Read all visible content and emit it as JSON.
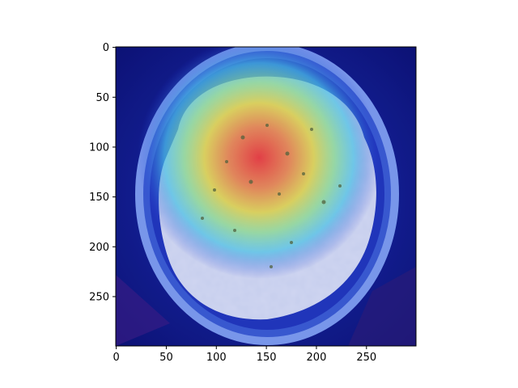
{
  "chart_data": {
    "type": "heatmap",
    "title": "",
    "xlabel": "",
    "ylabel": "",
    "xlim": [
      0,
      299
    ],
    "ylim": [
      299,
      0
    ],
    "xticks": [
      0,
      50,
      100,
      150,
      200,
      250
    ],
    "yticks": [
      0,
      50,
      100,
      150,
      200,
      250
    ],
    "colormap": "jet",
    "overlay": "attention heatmap over image of a bowl of mashed potatoes with herbs",
    "hotspot": {
      "center": [
        145,
        130
      ],
      "peak": "red",
      "falloff": [
        "red",
        "orange",
        "yellow",
        "cyan",
        "blue",
        "navy"
      ]
    },
    "grid": false,
    "legend": "none"
  },
  "colors": {
    "background": "#00007f",
    "bowl_rim": "#5b7fe0",
    "potato_light": "#dfe6f2",
    "axis": "#000000"
  }
}
